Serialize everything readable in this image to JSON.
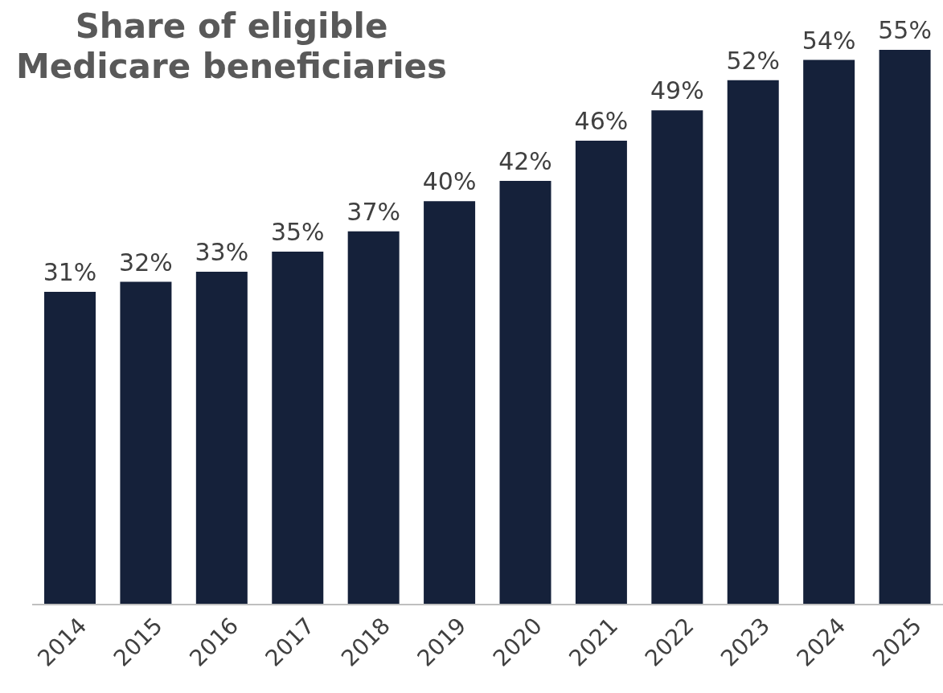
{
  "chart_data": {
    "type": "bar",
    "title": "Share of eligible\nMedicare beneficiaries",
    "categories": [
      "2014",
      "2015",
      "2016",
      "2017",
      "2018",
      "2019",
      "2020",
      "2021",
      "2022",
      "2023",
      "2024",
      "2025"
    ],
    "values": [
      31,
      32,
      33,
      35,
      37,
      40,
      42,
      46,
      49,
      52,
      54,
      55
    ],
    "value_labels": [
      "31%",
      "32%",
      "33%",
      "35%",
      "37%",
      "40%",
      "42%",
      "46%",
      "49%",
      "52%",
      "54%",
      "55%"
    ],
    "color": "#15213a"
  }
}
